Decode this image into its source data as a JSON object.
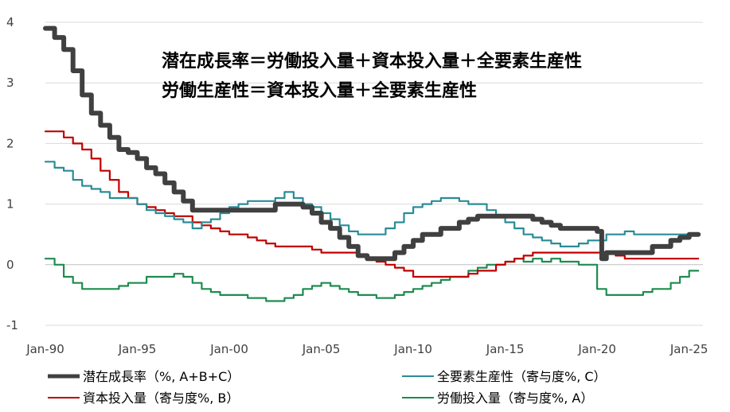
{
  "chart_data": {
    "type": "line",
    "title": "",
    "xlabel": "",
    "ylabel": "",
    "ylim": [
      -1,
      4
    ],
    "yticks": [
      "4",
      "3",
      "2",
      "1",
      "0",
      "-1"
    ],
    "xlim": [
      1990,
      2025.75
    ],
    "xticks": [
      {
        "label": "Jan-90",
        "x": 1990
      },
      {
        "label": "Jan-95",
        "x": 1995
      },
      {
        "label": "Jan-00",
        "x": 2000
      },
      {
        "label": "Jan-05",
        "x": 2005
      },
      {
        "label": "Jan-10",
        "x": 2010
      },
      {
        "label": "Jan-15",
        "x": 2015
      },
      {
        "label": "Jan-20",
        "x": 2020
      },
      {
        "label": "Jan-25",
        "x": 2025
      }
    ],
    "grid": "horizontal",
    "legend": "bottom",
    "annotations": [
      "潜在成長率＝労働投入量＋資本投入量＋全要素生産性",
      "労働生産性＝資本投入量＋全要素生産性"
    ],
    "series": [
      {
        "name": "潜在成長率（%, A+B+C）",
        "color": "#404040",
        "x": [
          1990,
          1990.5,
          1991,
          1991.5,
          1992,
          1992.5,
          1993,
          1993.5,
          1994,
          1994.5,
          1995,
          1995.5,
          1996,
          1996.5,
          1997,
          1997.5,
          1998,
          1998.5,
          1999,
          1999.5,
          2000,
          2000.5,
          2001,
          2001.5,
          2002,
          2002.5,
          2003,
          2003.5,
          2004,
          2004.5,
          2005,
          2005.5,
          2006,
          2006.5,
          2007,
          2007.5,
          2008,
          2008.5,
          2009,
          2009.5,
          2010,
          2010.5,
          2011,
          2011.5,
          2012,
          2012.5,
          2013,
          2013.5,
          2014,
          2014.5,
          2015,
          2015.5,
          2016,
          2016.5,
          2017,
          2017.5,
          2018,
          2018.5,
          2019,
          2019.5,
          2020,
          2020.25,
          2020.5,
          2021,
          2021.5,
          2022,
          2022.5,
          2023,
          2023.5,
          2024,
          2024.5,
          2025,
          2025.25,
          2025.5
        ],
        "values": [
          3.9,
          3.75,
          3.55,
          3.2,
          2.8,
          2.5,
          2.3,
          2.1,
          1.9,
          1.85,
          1.75,
          1.6,
          1.5,
          1.35,
          1.2,
          1.05,
          0.9,
          0.9,
          0.9,
          0.9,
          0.9,
          0.9,
          0.9,
          0.9,
          0.9,
          1.0,
          1.0,
          1.0,
          0.95,
          0.85,
          0.7,
          0.6,
          0.45,
          0.3,
          0.15,
          0.1,
          0.1,
          0.1,
          0.2,
          0.3,
          0.4,
          0.5,
          0.5,
          0.6,
          0.6,
          0.7,
          0.75,
          0.8,
          0.8,
          0.8,
          0.8,
          0.8,
          0.8,
          0.75,
          0.7,
          0.65,
          0.6,
          0.6,
          0.6,
          0.6,
          0.55,
          0.1,
          0.2,
          0.2,
          0.2,
          0.2,
          0.2,
          0.3,
          0.3,
          0.4,
          0.45,
          0.5,
          0.5,
          0.5
        ]
      },
      {
        "name": "全要素生産性（寄与度%, C）",
        "color": "#2a8c96",
        "x": [
          1990,
          1990.5,
          1991,
          1991.5,
          1992,
          1992.5,
          1993,
          1993.5,
          1994,
          1994.5,
          1995,
          1995.5,
          1996,
          1996.5,
          1997,
          1997.5,
          1998,
          1998.5,
          1999,
          1999.5,
          2000,
          2000.5,
          2001,
          2001.5,
          2002,
          2002.5,
          2003,
          2003.5,
          2004,
          2004.5,
          2005,
          2005.5,
          2006,
          2006.5,
          2007,
          2007.5,
          2008,
          2008.5,
          2009,
          2009.5,
          2010,
          2010.5,
          2011,
          2011.5,
          2012,
          2012.5,
          2013,
          2013.5,
          2014,
          2014.5,
          2015,
          2015.5,
          2016,
          2016.5,
          2017,
          2017.5,
          2018,
          2018.5,
          2019,
          2019.5,
          2020,
          2020.5,
          2021,
          2021.5,
          2022,
          2022.5,
          2023,
          2023.5,
          2024,
          2024.5,
          2025,
          2025.5
        ],
        "values": [
          1.7,
          1.6,
          1.55,
          1.4,
          1.3,
          1.25,
          1.2,
          1.1,
          1.1,
          1.1,
          1.0,
          0.9,
          0.85,
          0.8,
          0.75,
          0.7,
          0.6,
          0.7,
          0.75,
          0.85,
          0.95,
          1.0,
          1.05,
          1.05,
          1.05,
          1.1,
          1.2,
          1.1,
          1.0,
          0.95,
          0.85,
          0.75,
          0.65,
          0.55,
          0.5,
          0.5,
          0.5,
          0.6,
          0.7,
          0.85,
          0.95,
          1.0,
          1.05,
          1.1,
          1.1,
          1.05,
          1.0,
          1.0,
          0.9,
          0.8,
          0.7,
          0.6,
          0.5,
          0.45,
          0.4,
          0.35,
          0.3,
          0.3,
          0.35,
          0.4,
          0.4,
          0.5,
          0.5,
          0.55,
          0.5,
          0.5,
          0.5,
          0.5,
          0.5,
          0.5,
          0.5,
          0.5
        ]
      },
      {
        "name": "資本投入量（寄与度%, B）",
        "color": "#c00000",
        "x": [
          1990,
          1990.5,
          1991,
          1991.5,
          1992,
          1992.5,
          1993,
          1993.5,
          1994,
          1994.5,
          1995,
          1995.5,
          1996,
          1996.5,
          1997,
          1997.5,
          1998,
          1998.5,
          1999,
          1999.5,
          2000,
          2000.5,
          2001,
          2001.5,
          2002,
          2002.5,
          2003,
          2003.5,
          2004,
          2004.5,
          2005,
          2005.5,
          2006,
          2006.5,
          2007,
          2007.5,
          2008,
          2008.5,
          2009,
          2009.5,
          2010,
          2010.5,
          2011,
          2011.5,
          2012,
          2012.5,
          2013,
          2013.5,
          2014,
          2014.5,
          2015,
          2015.5,
          2016,
          2016.5,
          2017,
          2017.5,
          2018,
          2018.5,
          2019,
          2019.5,
          2020,
          2020.5,
          2021,
          2021.5,
          2022,
          2022.5,
          2023,
          2023.5,
          2024,
          2024.5,
          2025,
          2025.5
        ],
        "values": [
          2.2,
          2.2,
          2.1,
          2.0,
          1.9,
          1.75,
          1.55,
          1.4,
          1.2,
          1.1,
          1.0,
          0.95,
          0.9,
          0.85,
          0.8,
          0.8,
          0.7,
          0.65,
          0.6,
          0.55,
          0.5,
          0.5,
          0.45,
          0.4,
          0.35,
          0.3,
          0.3,
          0.3,
          0.3,
          0.25,
          0.2,
          0.2,
          0.2,
          0.2,
          0.15,
          0.1,
          0.05,
          0.0,
          -0.05,
          -0.1,
          -0.2,
          -0.2,
          -0.2,
          -0.2,
          -0.2,
          -0.2,
          -0.15,
          -0.1,
          -0.1,
          0.0,
          0.05,
          0.1,
          0.15,
          0.2,
          0.2,
          0.2,
          0.2,
          0.2,
          0.2,
          0.2,
          0.2,
          0.2,
          0.15,
          0.1,
          0.1,
          0.1,
          0.1,
          0.1,
          0.1,
          0.1,
          0.1,
          0.1
        ]
      },
      {
        "name": "労働投入量（寄与度%, A）",
        "color": "#1e8c50",
        "x": [
          1990,
          1990.5,
          1991,
          1991.5,
          1992,
          1992.5,
          1993,
          1993.5,
          1994,
          1994.5,
          1995,
          1995.5,
          1996,
          1996.5,
          1997,
          1997.5,
          1998,
          1998.5,
          1999,
          1999.5,
          2000,
          2000.5,
          2001,
          2001.5,
          2002,
          2002.5,
          2003,
          2003.5,
          2004,
          2004.5,
          2005,
          2005.5,
          2006,
          2006.5,
          2007,
          2007.5,
          2008,
          2008.5,
          2009,
          2009.5,
          2010,
          2010.5,
          2011,
          2011.5,
          2012,
          2012.5,
          2013,
          2013.5,
          2014,
          2014.5,
          2015,
          2015.5,
          2016,
          2016.5,
          2017,
          2017.5,
          2018,
          2018.5,
          2019,
          2019.5,
          2020,
          2020.5,
          2021,
          2021.5,
          2022,
          2022.5,
          2023,
          2023.5,
          2024,
          2024.5,
          2025,
          2025.5
        ],
        "values": [
          0.1,
          0.0,
          -0.2,
          -0.3,
          -0.4,
          -0.4,
          -0.4,
          -0.4,
          -0.35,
          -0.3,
          -0.3,
          -0.2,
          -0.2,
          -0.2,
          -0.15,
          -0.2,
          -0.3,
          -0.4,
          -0.45,
          -0.5,
          -0.5,
          -0.5,
          -0.55,
          -0.55,
          -0.6,
          -0.6,
          -0.55,
          -0.5,
          -0.4,
          -0.35,
          -0.3,
          -0.35,
          -0.4,
          -0.45,
          -0.5,
          -0.5,
          -0.55,
          -0.55,
          -0.5,
          -0.45,
          -0.4,
          -0.35,
          -0.3,
          -0.25,
          -0.2,
          -0.2,
          -0.1,
          -0.05,
          0.0,
          0.0,
          0.05,
          0.1,
          0.05,
          0.1,
          0.05,
          0.1,
          0.05,
          0.05,
          0.0,
          0.0,
          -0.4,
          -0.5,
          -0.5,
          -0.5,
          -0.5,
          -0.45,
          -0.4,
          -0.4,
          -0.3,
          -0.2,
          -0.1,
          -0.1
        ]
      }
    ]
  }
}
